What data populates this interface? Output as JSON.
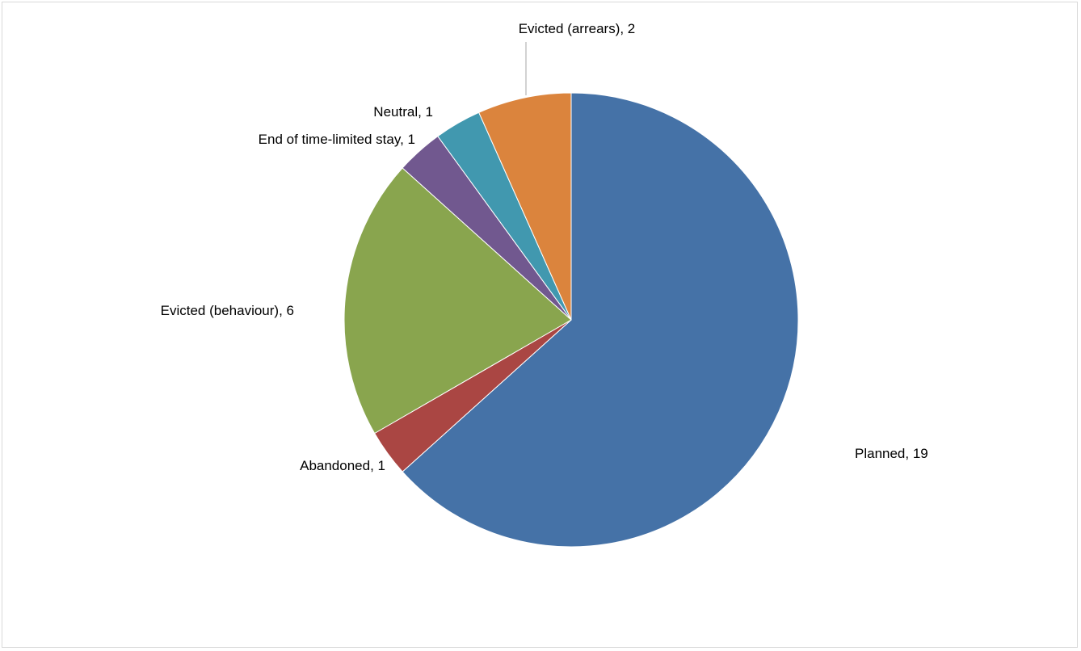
{
  "chart_data": {
    "type": "pie",
    "title": "",
    "slices": [
      {
        "label": "Planned",
        "value": 19,
        "display": "Planned, 19",
        "color": "#4572A7"
      },
      {
        "label": "Abandoned",
        "value": 1,
        "display": "Abandoned, 1",
        "color": "#AA4643"
      },
      {
        "label": "Evicted (behaviour)",
        "value": 6,
        "display": "Evicted (behaviour), 6",
        "color": "#89A54E"
      },
      {
        "label": "End of time-limited stay",
        "value": 1,
        "display": "End of time-limited stay, 1",
        "color": "#71588F"
      },
      {
        "label": "Neutral",
        "value": 1,
        "display": "Neutral, 1",
        "color": "#4198AF"
      },
      {
        "label": "Evicted (arrears)",
        "value": 2,
        "display": "Evicted (arrears), 2",
        "color": "#DB843D"
      }
    ],
    "legend": "none",
    "start": "12 o'clock",
    "direction": "clockwise"
  }
}
